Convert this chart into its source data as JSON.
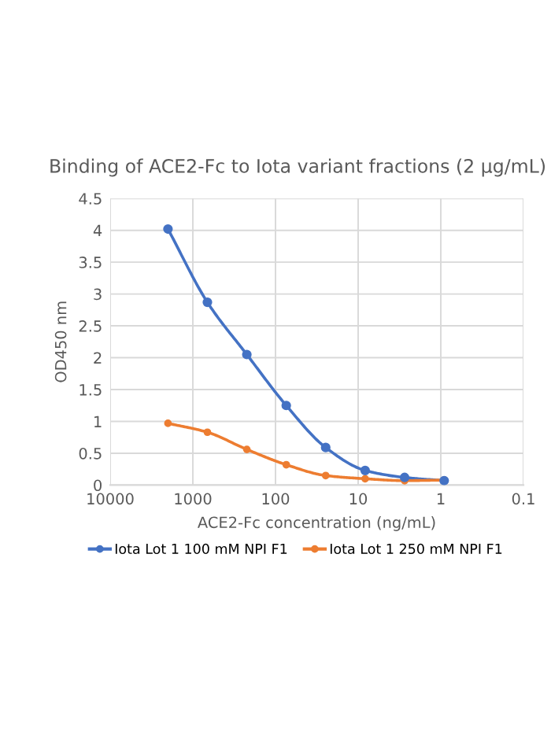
{
  "chart_data": {
    "type": "line",
    "title": "Binding of ACE2-Fc to Iota variant fractions (2 µg/mL)",
    "xlabel": "ACE2-Fc concentration (ng/mL)",
    "ylabel": "OD450 nm",
    "x": [
      2000,
      666.7,
      222.2,
      74.1,
      24.7,
      8.23,
      2.74,
      0.91
    ],
    "series": [
      {
        "name": "Iota Lot 1 100 mM NPI F1",
        "color": "#4472c4",
        "values": [
          4.02,
          2.87,
          2.05,
          1.25,
          0.59,
          0.23,
          0.12,
          0.07
        ]
      },
      {
        "name": "Iota Lot 1 250 mM NPI F1",
        "color": "#ed7d31",
        "values": [
          0.97,
          0.83,
          0.56,
          0.32,
          0.15,
          0.1,
          0.07,
          0.08
        ]
      }
    ],
    "log": "x",
    "xlim": [
      10000,
      0.1
    ],
    "xticks": [
      10000,
      1000,
      100,
      10,
      1,
      0.1
    ],
    "ylim": [
      0,
      4.5
    ],
    "yticks": [
      0,
      0.5,
      1,
      1.5,
      2,
      2.5,
      3,
      3.5,
      4,
      4.5
    ],
    "grid": true,
    "legend": "bottom",
    "marker": "circle",
    "line_style": "solid"
  }
}
